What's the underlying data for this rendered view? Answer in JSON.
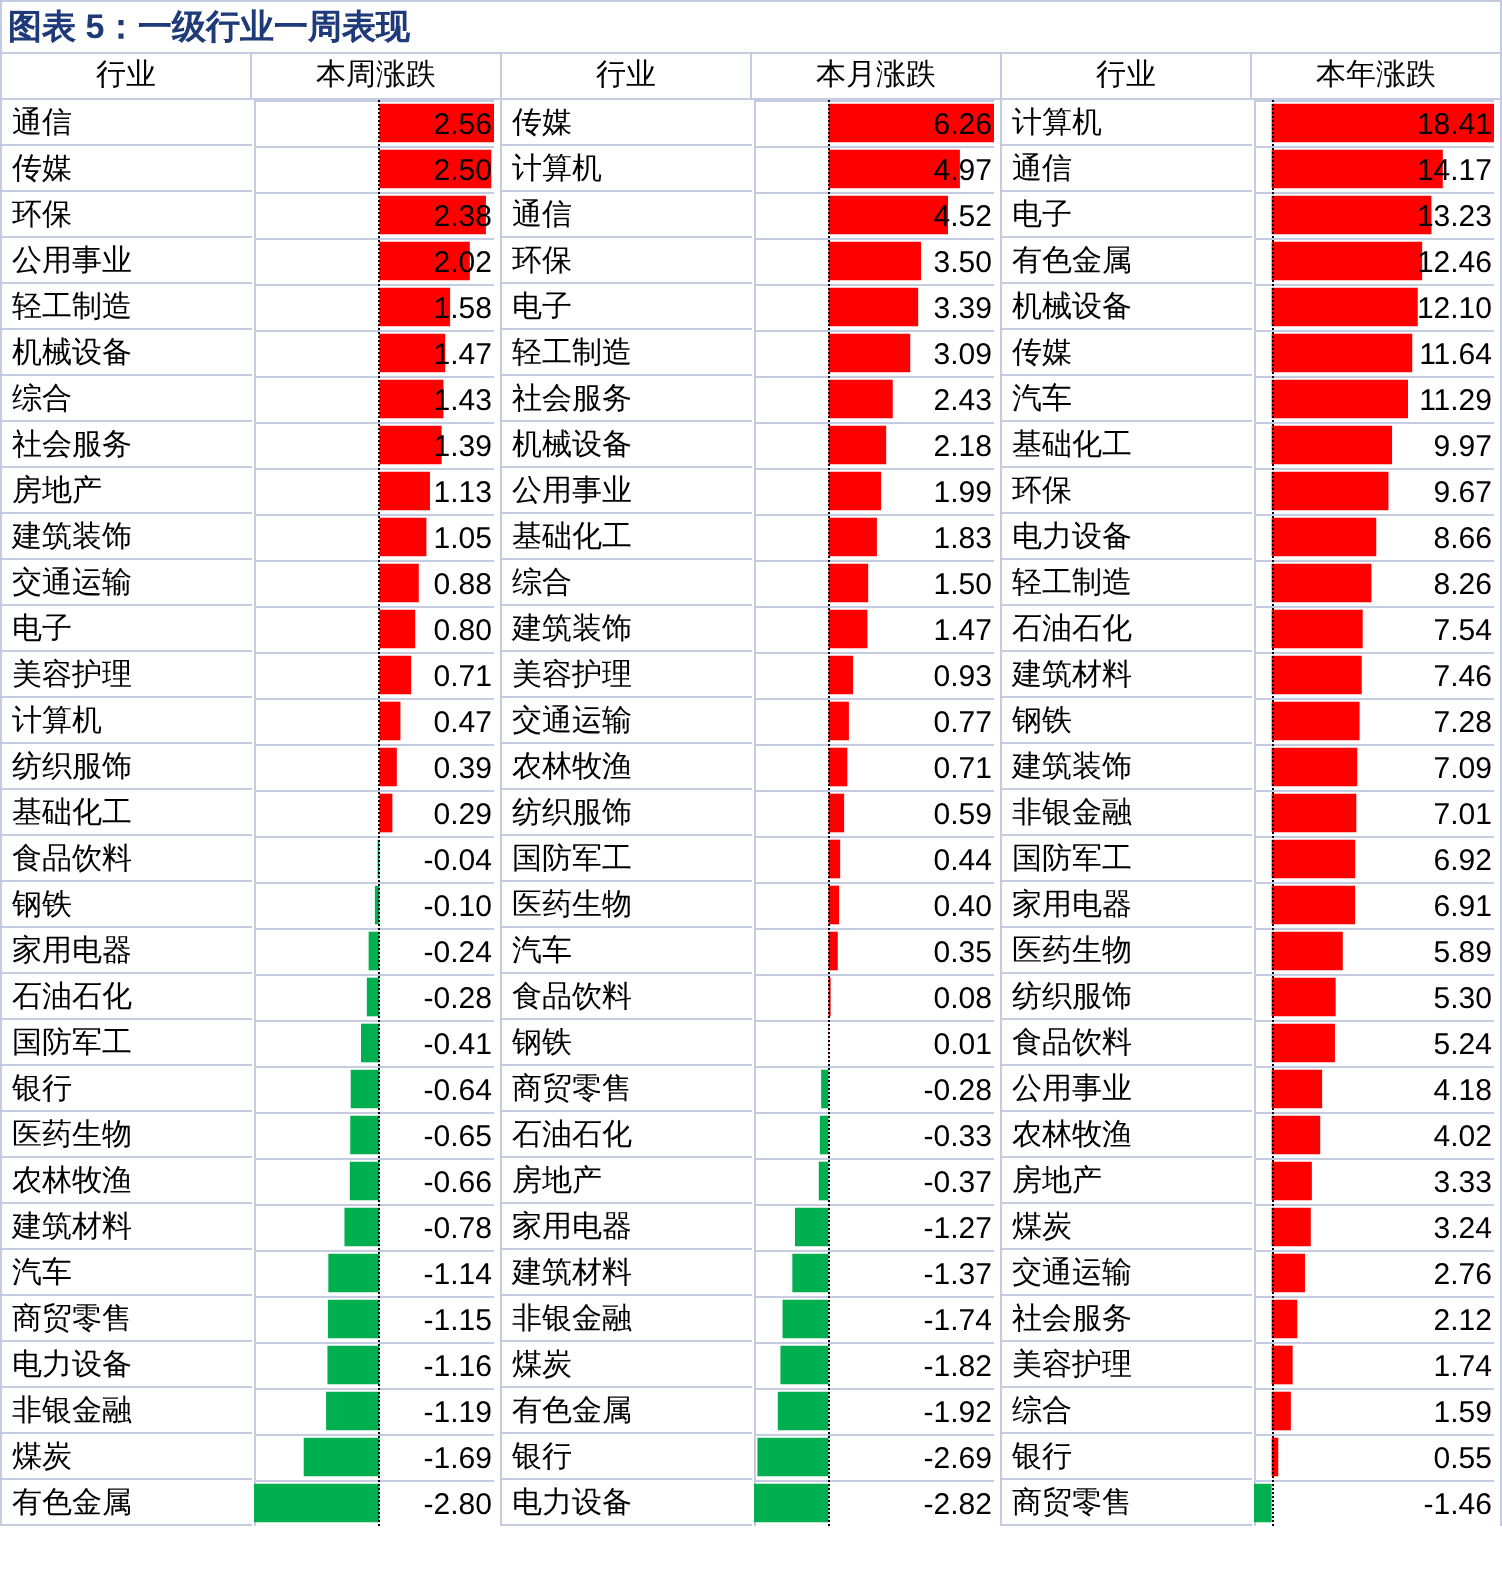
{
  "chart_data": [
    {
      "type": "bar",
      "orientation": "horizontal",
      "title": "图表 5：一级行业一周表现",
      "ylabel": "行业",
      "xlabel": "本周涨跌",
      "grid": "y",
      "categories": [
        "通信",
        "传媒",
        "环保",
        "公用事业",
        "轻工制造",
        "机械设备",
        "综合",
        "社会服务",
        "房地产",
        "建筑装饰",
        "交通运输",
        "电子",
        "美容护理",
        "计算机",
        "纺织服饰",
        "基础化工",
        "食品饮料",
        "钢铁",
        "家用电器",
        "石油石化",
        "国防军工",
        "银行",
        "医药生物",
        "农林牧渔",
        "建筑材料",
        "汽车",
        "商贸零售",
        "电力设备",
        "非银金融",
        "煤炭",
        "有色金属"
      ],
      "values": [
        2.56,
        2.5,
        2.38,
        2.02,
        1.58,
        1.47,
        1.43,
        1.39,
        1.13,
        1.05,
        0.88,
        0.8,
        0.71,
        0.47,
        0.39,
        0.29,
        -0.04,
        -0.1,
        -0.24,
        -0.28,
        -0.41,
        -0.64,
        -0.65,
        -0.66,
        -0.78,
        -1.14,
        -1.15,
        -1.16,
        -1.19,
        -1.69,
        -2.8
      ],
      "value_labels": [
        "2.56",
        "2.50",
        "2.38",
        "2.02",
        "1.58",
        "1.47",
        "1.43",
        "1.39",
        "1.13",
        "1.05",
        "0.88",
        "0.80",
        "0.71",
        "0.47",
        "0.39",
        "0.29",
        "-0.04",
        "-0.10",
        "-0.24",
        "-0.28",
        "-0.41",
        "-0.64",
        "-0.65",
        "-0.66",
        "-0.78",
        "-1.14",
        "-1.15",
        "-1.16",
        "-1.19",
        "-1.69",
        "-2.80"
      ],
      "colors": [
        "#ff0000",
        "#ff0000",
        "#ff0000",
        "#ff0000",
        "#ff0000",
        "#ff0000",
        "#ff0000",
        "#ff0000",
        "#ff0000",
        "#ff0000",
        "#ff0000",
        "#ff0000",
        "#ff0000",
        "#ff0000",
        "#ff0000",
        "#ff0000",
        "#00b050",
        "#00b050",
        "#00b050",
        "#00b050",
        "#00b050",
        "#00b050",
        "#00b050",
        "#00b050",
        "#00b050",
        "#00b050",
        "#00b050",
        "#00b050",
        "#00b050",
        "#00b050",
        "#00b050"
      ],
      "ref_lines": [
        {
          "axis": "x",
          "value": 0,
          "color": "#000000",
          "line_style": "dotted"
        }
      ]
    },
    {
      "type": "bar",
      "orientation": "horizontal",
      "ylabel": "行业",
      "xlabel": "本月涨跌",
      "grid": "y",
      "categories": [
        "传媒",
        "计算机",
        "通信",
        "环保",
        "电子",
        "轻工制造",
        "社会服务",
        "机械设备",
        "公用事业",
        "基础化工",
        "综合",
        "建筑装饰",
        "美容护理",
        "交通运输",
        "农林牧渔",
        "纺织服饰",
        "国防军工",
        "医药生物",
        "汽车",
        "食品饮料",
        "钢铁",
        "商贸零售",
        "石油石化",
        "房地产",
        "家用电器",
        "建筑材料",
        "非银金融",
        "煤炭",
        "有色金属",
        "银行",
        "电力设备"
      ],
      "values": [
        6.26,
        4.97,
        4.52,
        3.5,
        3.39,
        3.09,
        2.43,
        2.18,
        1.99,
        1.83,
        1.5,
        1.47,
        0.93,
        0.77,
        0.71,
        0.59,
        0.44,
        0.4,
        0.35,
        0.08,
        0.01,
        -0.28,
        -0.33,
        -0.37,
        -1.27,
        -1.37,
        -1.74,
        -1.82,
        -1.92,
        -2.69,
        -2.82
      ],
      "value_labels": [
        "6.26",
        "4.97",
        "4.52",
        "3.50",
        "3.39",
        "3.09",
        "2.43",
        "2.18",
        "1.99",
        "1.83",
        "1.50",
        "1.47",
        "0.93",
        "0.77",
        "0.71",
        "0.59",
        "0.44",
        "0.40",
        "0.35",
        "0.08",
        "0.01",
        "-0.28",
        "-0.33",
        "-0.37",
        "-1.27",
        "-1.37",
        "-1.74",
        "-1.82",
        "-1.92",
        "-2.69",
        "-2.82"
      ],
      "colors": [
        "#ff0000",
        "#ff0000",
        "#ff0000",
        "#ff0000",
        "#ff0000",
        "#ff0000",
        "#ff0000",
        "#ff0000",
        "#ff0000",
        "#ff0000",
        "#ff0000",
        "#ff0000",
        "#ff0000",
        "#ff0000",
        "#ff0000",
        "#ff0000",
        "#ff0000",
        "#ff0000",
        "#ff0000",
        "#ff0000",
        "#ff0000",
        "#00b050",
        "#00b050",
        "#00b050",
        "#00b050",
        "#00b050",
        "#00b050",
        "#00b050",
        "#00b050",
        "#00b050",
        "#00b050"
      ],
      "ref_lines": [
        {
          "axis": "x",
          "value": 0,
          "color": "#000000",
          "line_style": "dotted"
        }
      ]
    },
    {
      "type": "bar",
      "orientation": "horizontal",
      "ylabel": "行业",
      "xlabel": "本年涨跌",
      "grid": "y",
      "categories": [
        "计算机",
        "通信",
        "电子",
        "有色金属",
        "机械设备",
        "传媒",
        "汽车",
        "基础化工",
        "环保",
        "电力设备",
        "轻工制造",
        "石油石化",
        "建筑材料",
        "钢铁",
        "建筑装饰",
        "非银金融",
        "国防军工",
        "家用电器",
        "医药生物",
        "纺织服饰",
        "食品饮料",
        "公用事业",
        "农林牧渔",
        "房地产",
        "煤炭",
        "交通运输",
        "社会服务",
        "美容护理",
        "综合",
        "银行",
        "商贸零售"
      ],
      "values": [
        18.41,
        14.17,
        13.23,
        12.46,
        12.1,
        11.64,
        11.29,
        9.97,
        9.67,
        8.66,
        8.26,
        7.54,
        7.46,
        7.28,
        7.09,
        7.01,
        6.92,
        6.91,
        5.89,
        5.3,
        5.24,
        4.18,
        4.02,
        3.33,
        3.24,
        2.76,
        2.12,
        1.74,
        1.59,
        0.55,
        -1.46
      ],
      "value_labels": [
        "18.41",
        "14.17",
        "13.23",
        "12.46",
        "12.10",
        "11.64",
        "11.29",
        "9.97",
        "9.67",
        "8.66",
        "8.26",
        "7.54",
        "7.46",
        "7.28",
        "7.09",
        "7.01",
        "6.92",
        "6.91",
        "5.89",
        "5.30",
        "5.24",
        "4.18",
        "4.02",
        "3.33",
        "3.24",
        "2.76",
        "2.12",
        "1.74",
        "1.59",
        "0.55",
        "-1.46"
      ],
      "colors": [
        "#ff0000",
        "#ff0000",
        "#ff0000",
        "#ff0000",
        "#ff0000",
        "#ff0000",
        "#ff0000",
        "#ff0000",
        "#ff0000",
        "#ff0000",
        "#ff0000",
        "#ff0000",
        "#ff0000",
        "#ff0000",
        "#ff0000",
        "#ff0000",
        "#ff0000",
        "#ff0000",
        "#ff0000",
        "#ff0000",
        "#ff0000",
        "#ff0000",
        "#ff0000",
        "#ff0000",
        "#ff0000",
        "#ff0000",
        "#ff0000",
        "#ff0000",
        "#ff0000",
        "#ff0000",
        "#00b050"
      ],
      "ref_lines": [
        {
          "axis": "x",
          "value": 0,
          "color": "#000000",
          "line_style": "dotted"
        }
      ]
    }
  ]
}
